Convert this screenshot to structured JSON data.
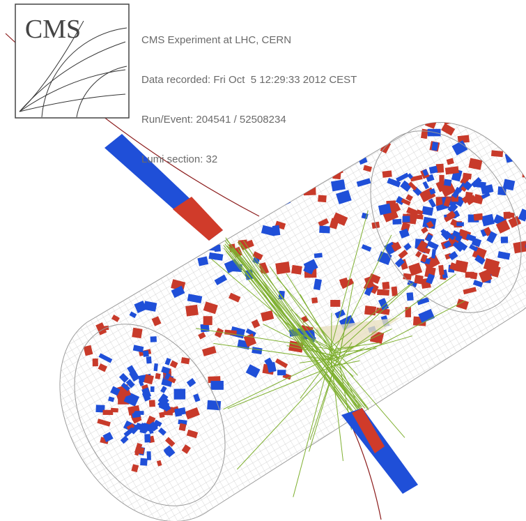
{
  "logo": {
    "text": "CMS"
  },
  "info": {
    "lines": [
      "CMS Experiment at LHC, CERN",
      "Data recorded: Fri Oct  5 12:29:33 2012 CEST",
      "Run/Event: 204541 / 52508234",
      "Lumi section: 32"
    ]
  }
}
